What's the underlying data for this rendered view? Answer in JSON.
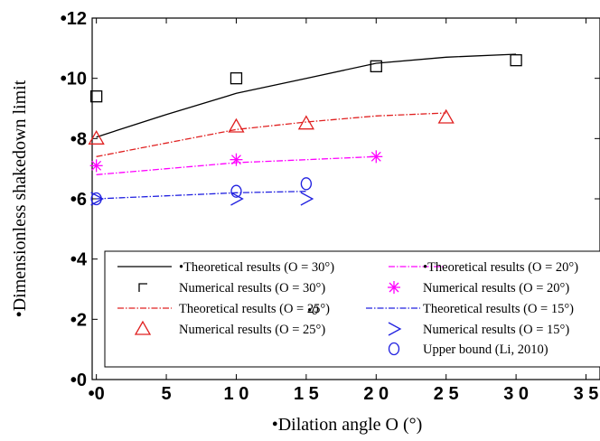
{
  "chart_data": {
    "type": "line",
    "xlabel": "•Dilation angle O (°)",
    "ylabel": "•Dimensionless shakedown limit",
    "xlim": [
      -0.3,
      36
    ],
    "ylim": [
      0,
      12
    ],
    "x_ticks": [
      "•0",
      "5",
      "1 0",
      "1 5",
      "2 0",
      "2 5",
      "3 0",
      "3 5"
    ],
    "x_tick_values": [
      0,
      5,
      10,
      15,
      20,
      25,
      30,
      35
    ],
    "y_ticks": [
      "•0",
      "•2",
      "•4",
      "•6",
      "•8",
      "•10",
      "•12"
    ],
    "y_tick_values": [
      0,
      2,
      4,
      6,
      8,
      10,
      12
    ],
    "stray_label": "•0",
    "series": [
      {
        "name": "•Theoretical results (O = 30°)",
        "kind": "line",
        "color": "#000000",
        "dash": "solid",
        "x": [
          0,
          5,
          10,
          15,
          20,
          25,
          30
        ],
        "y": [
          8.05,
          8.8,
          9.5,
          10.0,
          10.5,
          10.7,
          10.8
        ]
      },
      {
        "name": "Numerical results (O = 30°)",
        "kind": "marker",
        "marker": "square",
        "color": "#000000",
        "x": [
          0,
          10,
          20,
          30
        ],
        "y": [
          9.4,
          10.0,
          10.4,
          10.6
        ]
      },
      {
        "name": "Theoretical results (O = 25°)",
        "kind": "line",
        "color": "#e02020",
        "dash": "dashdot",
        "x": [
          0,
          5,
          10,
          15,
          20,
          25
        ],
        "y": [
          7.4,
          7.85,
          8.3,
          8.55,
          8.75,
          8.85
        ]
      },
      {
        "name": "Numerical results (O = 25°)",
        "kind": "marker",
        "marker": "triangle",
        "color": "#e02020",
        "x": [
          0,
          10,
          15,
          25
        ],
        "y": [
          8.0,
          8.4,
          8.5,
          8.7
        ]
      },
      {
        "name": "•Theoretical results (O = 20°)",
        "kind": "line",
        "color": "#ff00ff",
        "dash": "dashdot",
        "x": [
          0,
          5,
          10,
          15,
          20
        ],
        "y": [
          6.8,
          7.0,
          7.2,
          7.3,
          7.4
        ]
      },
      {
        "name": "Numerical results (O = 20°)",
        "kind": "marker",
        "marker": "asterisk",
        "color": "#ff00ff",
        "x": [
          0,
          10,
          20
        ],
        "y": [
          7.1,
          7.3,
          7.4
        ]
      },
      {
        "name": "Theoretical results (O = 15°)",
        "kind": "line",
        "color": "#2020e0",
        "dash": "dashdot",
        "x": [
          0,
          5,
          10,
          15
        ],
        "y": [
          6.0,
          6.1,
          6.2,
          6.25
        ]
      },
      {
        "name": "Numerical results (O = 15°)",
        "kind": "marker",
        "marker": "tri-right",
        "color": "#2020e0",
        "x": [
          0,
          10,
          15
        ],
        "y": [
          6.0,
          6.0,
          6.0
        ]
      },
      {
        "name": "Upper bound (Li, 2010)",
        "kind": "marker",
        "marker": "circle",
        "color": "#2020e0",
        "x": [
          0,
          10,
          15
        ],
        "y": [
          6.0,
          6.25,
          6.5
        ]
      }
    ]
  }
}
